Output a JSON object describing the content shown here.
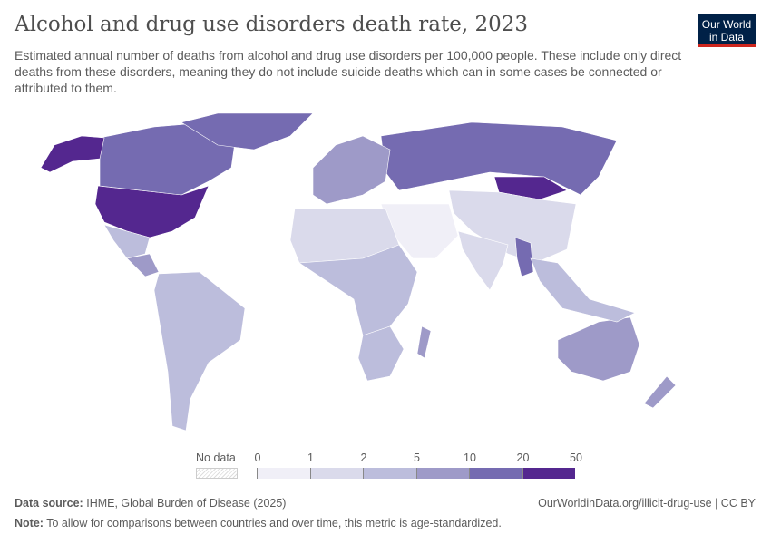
{
  "header": {
    "title": "Alcohol and drug use disorders death rate, 2023",
    "subtitle": "Estimated annual number of deaths from alcohol and drug use disorders per 100,000 people. These include only direct deaths from these disorders, meaning they do not include suicide deaths which can in some cases be connected or attributed to them.",
    "logo": "Our World in Data"
  },
  "legend": {
    "no_data": "No data",
    "ticks": [
      "0",
      "1",
      "2",
      "5",
      "10",
      "20",
      "50"
    ],
    "colors": [
      "#f0eff7",
      "#dadaeb",
      "#bcbddc",
      "#9e9ac8",
      "#756bb1",
      "#54278f"
    ],
    "no_data_pattern": "hatched-gray"
  },
  "footer": {
    "source_label": "Data source:",
    "source": "IHME, Global Burden of Disease (2025)",
    "url": "OurWorldinData.org/illicit-drug-use | CC BY",
    "note_label": "Note:",
    "note": "To allow for comparisons between countries and over time, this metric is age-standardized."
  },
  "map_regions": [
    {
      "name": "United States",
      "bin": 5
    },
    {
      "name": "Canada",
      "bin": 4
    },
    {
      "name": "Alaska",
      "bin": 5
    },
    {
      "name": "Mexico",
      "bin": 2
    },
    {
      "name": "Central America",
      "bin": 3
    },
    {
      "name": "South America",
      "bin": 2
    },
    {
      "name": "Greenland",
      "bin": 4
    },
    {
      "name": "Russia",
      "bin": 4
    },
    {
      "name": "Mongolia",
      "bin": 5
    },
    {
      "name": "China",
      "bin": 1
    },
    {
      "name": "India",
      "bin": 1
    },
    {
      "name": "Myanmar",
      "bin": 4
    },
    {
      "name": "Middle East",
      "bin": 0
    },
    {
      "name": "North Africa",
      "bin": 1
    },
    {
      "name": "Sub-Saharan Africa",
      "bin": 2
    },
    {
      "name": "Southern Africa",
      "bin": 2
    },
    {
      "name": "Madagascar",
      "bin": 3
    },
    {
      "name": "Europe",
      "bin": 3
    },
    {
      "name": "Australia",
      "bin": 3
    },
    {
      "name": "New Zealand",
      "bin": 3
    },
    {
      "name": "Southeast Asia",
      "bin": 2
    }
  ]
}
